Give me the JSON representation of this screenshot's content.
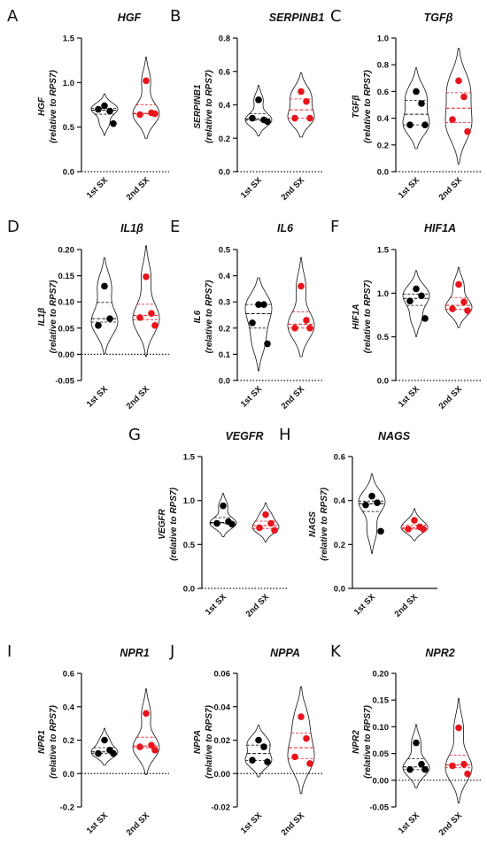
{
  "chart_data": [
    {
      "panel": "A",
      "type": "violin",
      "title": "HGF",
      "ylabel": [
        "HGF",
        "(relative to RPS7)"
      ],
      "categories": [
        "1st SX",
        "2nd SX"
      ],
      "ylim": [
        0,
        1.5
      ],
      "yticks": [
        0.0,
        0.5,
        1.0,
        1.5
      ],
      "tick_labels": [
        "0.0",
        "0.5",
        "1.0",
        "1.5"
      ],
      "zero_line": true,
      "series": [
        {
          "values": [
            0.74,
            0.68,
            0.7,
            0.54
          ],
          "color": "#000000"
        },
        {
          "values": [
            1.02,
            0.66,
            0.64,
            0.65
          ],
          "color": "#e8141c"
        }
      ]
    },
    {
      "panel": "B",
      "type": "violin",
      "title": "SERPINB1",
      "ylabel": [
        "SERPINB1",
        "(relative to RPS7)"
      ],
      "categories": [
        "1st SX",
        "2nd SX"
      ],
      "ylim": [
        0,
        0.8
      ],
      "yticks": [
        0.0,
        0.2,
        0.4,
        0.6,
        0.8
      ],
      "tick_labels": [
        "0.0",
        "0.2",
        "0.4",
        "0.6",
        "0.8"
      ],
      "zero_line": true,
      "series": [
        {
          "values": [
            0.43,
            0.31,
            0.32,
            0.3
          ],
          "color": "#000000"
        },
        {
          "values": [
            0.48,
            0.42,
            0.32,
            0.32
          ],
          "color": "#e8141c"
        }
      ]
    },
    {
      "panel": "C",
      "type": "violin",
      "title": "TGFβ",
      "ylabel": [
        "TGFβ",
        "(relative to RPS7)"
      ],
      "categories": [
        "1st SX",
        "2nd SX"
      ],
      "ylim": [
        0,
        1.0
      ],
      "yticks": [
        0.0,
        0.2,
        0.4,
        0.6,
        0.8,
        1.0
      ],
      "tick_labels": [
        "0.0",
        "0.2",
        "0.4",
        "0.6",
        "0.8",
        "1.0"
      ],
      "zero_line": true,
      "series": [
        {
          "values": [
            0.6,
            0.51,
            0.35,
            0.35
          ],
          "color": "#000000"
        },
        {
          "values": [
            0.68,
            0.56,
            0.39,
            0.3
          ],
          "color": "#e8141c"
        }
      ]
    },
    {
      "panel": "D",
      "type": "violin",
      "title": "IL1β",
      "ylabel": [
        "IL1β",
        "(relative to RPS7)"
      ],
      "categories": [
        "1st SX",
        "2nd SX"
      ],
      "ylim": [
        -0.05,
        0.2
      ],
      "yticks": [
        -0.05,
        0.0,
        0.05,
        0.1,
        0.15,
        0.2
      ],
      "tick_labels": [
        "-0.05",
        "0.00",
        "0.05",
        "0.10",
        "0.15",
        "0.20"
      ],
      "zero_line": true,
      "series": [
        {
          "values": [
            0.13,
            0.068,
            0.055
          ],
          "color": "#000000"
        },
        {
          "values": [
            0.148,
            0.078,
            0.07,
            0.055
          ],
          "color": "#e8141c"
        }
      ]
    },
    {
      "panel": "E",
      "type": "violin",
      "title": "IL6",
      "ylabel": [
        "IL6",
        "(relative to RPS7)"
      ],
      "categories": [
        "1st SX",
        "2nd SX"
      ],
      "ylim": [
        0,
        0.5
      ],
      "yticks": [
        0.0,
        0.1,
        0.2,
        0.3,
        0.4,
        0.5
      ],
      "tick_labels": [
        "0.0",
        "0.1",
        "0.2",
        "0.3",
        "0.4",
        "0.5"
      ],
      "zero_line": true,
      "series": [
        {
          "values": [
            0.29,
            0.29,
            0.22,
            0.14
          ],
          "color": "#000000"
        },
        {
          "values": [
            0.36,
            0.23,
            0.2,
            0.2
          ],
          "color": "#e8141c"
        }
      ]
    },
    {
      "panel": "F",
      "type": "violin",
      "title": "HIF1A",
      "ylabel": [
        "HIF1A",
        "(relative to RPS7)"
      ],
      "categories": [
        "1st SX",
        "2nd SX"
      ],
      "ylim": [
        0,
        1.5
      ],
      "yticks": [
        0.0,
        0.5,
        1.0,
        1.5
      ],
      "tick_labels": [
        "0.0",
        "0.5",
        "1.0",
        "1.5"
      ],
      "zero_line": true,
      "series": [
        {
          "values": [
            1.05,
            0.97,
            0.91,
            0.71
          ],
          "color": "#000000"
        },
        {
          "values": [
            1.1,
            0.9,
            0.82,
            0.8
          ],
          "color": "#e8141c"
        }
      ]
    },
    {
      "panel": "G",
      "type": "violin",
      "title": "VEGFR",
      "ylabel": [
        "VEGFR",
        "(relative to RPS7)"
      ],
      "categories": [
        "1st SX",
        "2nd SX"
      ],
      "ylim": [
        0,
        1.5
      ],
      "yticks": [
        0.0,
        0.5,
        1.0,
        1.5
      ],
      "tick_labels": [
        "0.0",
        "0.5",
        "1.0",
        "1.5"
      ],
      "zero_line": true,
      "series": [
        {
          "values": [
            0.94,
            0.76,
            0.74,
            0.73
          ],
          "color": "#000000"
        },
        {
          "values": [
            0.84,
            0.74,
            0.69,
            0.66
          ],
          "color": "#e8141c"
        }
      ]
    },
    {
      "panel": "H",
      "type": "violin",
      "title": "NAGS",
      "ylabel": [
        "NAGS",
        "(relative to RPS7)"
      ],
      "categories": [
        "1st SX",
        "2nd SX"
      ],
      "ylim": [
        0,
        0.6
      ],
      "yticks": [
        0.0,
        0.2,
        0.4,
        0.6
      ],
      "tick_labels": [
        "0.0",
        "0.2",
        "0.4",
        "0.6"
      ],
      "zero_line": false,
      "series": [
        {
          "values": [
            0.42,
            0.39,
            0.38,
            0.26
          ],
          "color": "#000000"
        },
        {
          "values": [
            0.31,
            0.28,
            0.27,
            0.27
          ],
          "color": "#e8141c"
        }
      ]
    },
    {
      "panel": "I",
      "type": "violin",
      "title": "NPR1",
      "ylabel": [
        "NPR1",
        "(relative to RPS7)"
      ],
      "categories": [
        "1st SX",
        "2nd SX"
      ],
      "ylim": [
        -0.2,
        0.6
      ],
      "yticks": [
        -0.2,
        0.0,
        0.2,
        0.4,
        0.6
      ],
      "tick_labels": [
        "-0.2",
        "0.0",
        "0.2",
        "0.4",
        "0.6"
      ],
      "zero_line": true,
      "series": [
        {
          "values": [
            0.2,
            0.14,
            0.12,
            0.12
          ],
          "color": "#000000"
        },
        {
          "values": [
            0.36,
            0.17,
            0.16,
            0.14
          ],
          "color": "#e8141c"
        }
      ]
    },
    {
      "panel": "J",
      "type": "violin",
      "title": "NPPA",
      "ylabel": [
        "NPPA",
        "(relative to RPS7)"
      ],
      "categories": [
        "1st SX",
        "2nd SX"
      ],
      "ylim": [
        -0.02,
        0.06
      ],
      "yticks": [
        -0.02,
        0.0,
        0.02,
        0.04,
        0.06
      ],
      "tick_labels": [
        "-0.02",
        "0.00",
        "0.02",
        "0.04",
        "0.06"
      ],
      "zero_line": true,
      "series": [
        {
          "values": [
            0.02,
            0.016,
            0.008,
            0.007
          ],
          "color": "#000000"
        },
        {
          "values": [
            0.034,
            0.021,
            0.01,
            0.006
          ],
          "color": "#e8141c"
        }
      ]
    },
    {
      "panel": "K",
      "type": "violin",
      "title": "NPR2",
      "ylabel": [
        "NPR2",
        "(relative to RPS7)"
      ],
      "categories": [
        "1st SX",
        "2nd SX"
      ],
      "ylim": [
        -0.05,
        0.2
      ],
      "yticks": [
        -0.05,
        0.0,
        0.05,
        0.1,
        0.15,
        0.2
      ],
      "tick_labels": [
        "-0.05",
        "0.00",
        "0.05",
        "0.10",
        "0.15",
        "0.20"
      ],
      "zero_line": true,
      "series": [
        {
          "values": [
            0.07,
            0.03,
            0.02,
            0.02
          ],
          "color": "#000000"
        },
        {
          "values": [
            0.098,
            0.03,
            0.027,
            0.012
          ],
          "color": "#e8141c"
        }
      ]
    }
  ]
}
